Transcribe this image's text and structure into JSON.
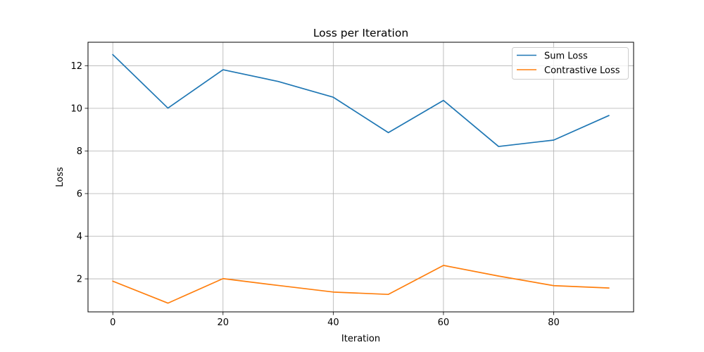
{
  "chart_data": {
    "type": "line",
    "title": "Loss per Iteration",
    "xlabel": "Iteration",
    "ylabel": "Loss",
    "x": [
      0,
      10,
      20,
      30,
      40,
      50,
      60,
      70,
      80,
      90
    ],
    "xlim": [
      -4.5,
      94.5
    ],
    "ylim": [
      0.45,
      13.1
    ],
    "xticks": [
      0,
      20,
      40,
      60,
      80
    ],
    "yticks": [
      2,
      4,
      6,
      8,
      10,
      12
    ],
    "grid": true,
    "legend_position": "top-right",
    "series": [
      {
        "name": "Sum Loss",
        "color": "#1f77b4",
        "values": [
          12.52,
          10.01,
          11.81,
          11.26,
          10.52,
          8.86,
          10.37,
          8.21,
          8.51,
          9.66
        ]
      },
      {
        "name": "Contrastive Loss",
        "color": "#ff7f0e",
        "values": [
          1.89,
          0.86,
          2.01,
          1.69,
          1.38,
          1.27,
          2.63,
          2.13,
          1.68,
          1.57
        ]
      }
    ]
  }
}
